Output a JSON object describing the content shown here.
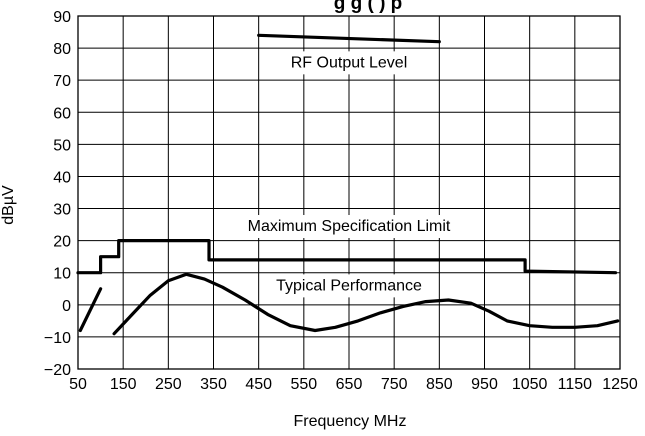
{
  "chart_data": {
    "type": "line",
    "title": "g   g (  ) p",
    "xlabel": "Frequency MHz",
    "ylabel": "dBµV",
    "xlim": [
      50,
      1250
    ],
    "ylim": [
      -20,
      90
    ],
    "x_ticks": [
      50,
      150,
      250,
      350,
      450,
      550,
      650,
      750,
      850,
      950,
      1050,
      1150,
      1250
    ],
    "y_ticks": [
      -20,
      -10,
      0,
      10,
      20,
      30,
      40,
      50,
      60,
      70,
      80,
      90
    ],
    "x_tick_labels": [
      "50",
      "150",
      "250",
      "350",
      "450",
      "550",
      "650",
      "750",
      "850",
      "950",
      "1050",
      "1150",
      "1250"
    ],
    "y_tick_labels": [
      "−20",
      "−10",
      "0",
      "10",
      "20",
      "30",
      "40",
      "50",
      "60",
      "70",
      "80",
      "90"
    ],
    "grid": true,
    "annotations": [
      {
        "text": "RF Output Level",
        "x": 650,
        "y": 74
      },
      {
        "text": "Maximum Specification Limit",
        "x": 650,
        "y": 23
      },
      {
        "text": "Typical Performance",
        "x": 650,
        "y": 4.5
      }
    ],
    "series": [
      {
        "id": "rf-output-level",
        "points": [
          [
            450,
            84
          ],
          [
            850,
            82
          ]
        ]
      },
      {
        "id": "maximum-specification-limit",
        "points": [
          [
            50,
            10
          ],
          [
            100,
            10
          ],
          [
            100,
            15
          ],
          [
            140,
            15
          ],
          [
            140,
            20
          ],
          [
            340,
            20
          ],
          [
            340,
            14
          ],
          [
            1040,
            14
          ],
          [
            1040,
            10.5
          ],
          [
            1240,
            10
          ]
        ]
      },
      {
        "id": "typical-performance-low-1",
        "points": [
          [
            55,
            -8
          ],
          [
            100,
            5
          ]
        ]
      },
      {
        "id": "typical-performance-low-2",
        "points": [
          [
            130,
            -9
          ],
          [
            170,
            -3
          ],
          [
            210,
            3
          ],
          [
            250,
            7.5
          ],
          [
            290,
            9.5
          ],
          [
            330,
            8
          ],
          [
            370,
            5.5
          ],
          [
            420,
            1.5
          ],
          [
            470,
            -3
          ],
          [
            520,
            -6.5
          ],
          [
            575,
            -8
          ],
          [
            620,
            -7
          ],
          [
            670,
            -5
          ],
          [
            720,
            -2.5
          ],
          [
            770,
            -0.5
          ],
          [
            820,
            1
          ],
          [
            870,
            1.5
          ],
          [
            920,
            0.5
          ],
          [
            960,
            -2
          ],
          [
            1000,
            -5
          ],
          [
            1050,
            -6.5
          ],
          [
            1100,
            -7
          ],
          [
            1150,
            -7
          ],
          [
            1200,
            -6.5
          ],
          [
            1245,
            -5
          ]
        ]
      }
    ]
  }
}
